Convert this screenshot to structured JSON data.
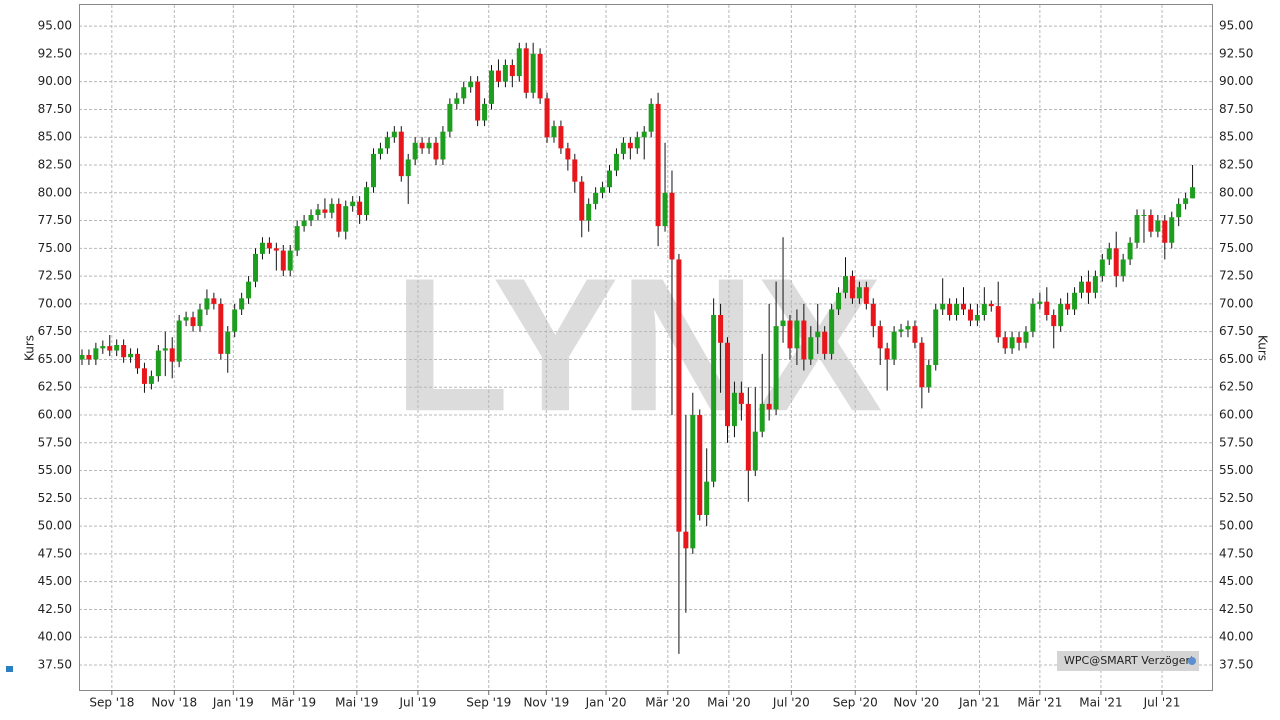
{
  "chart_data": {
    "type": "candlestick",
    "ylabel": "Kurs",
    "annotation": "WPC@SMART Verzögert",
    "watermark": "LYNX",
    "up_color": "#1e9e1e",
    "down_color": "#e8161b",
    "grid": true,
    "xlim": [
      -0.43,
      162.8
    ],
    "ylim": [
      35.25,
      96.9
    ],
    "xticks": [
      {
        "value": 4.3,
        "label": "Sep '18"
      },
      {
        "value": 13.3,
        "label": "Nov '18"
      },
      {
        "value": 21.8,
        "label": "Jan '19"
      },
      {
        "value": 30.5,
        "label": "Mär '19"
      },
      {
        "value": 39.6,
        "label": "Mai '19"
      },
      {
        "value": 48.4,
        "label": "Jul '19"
      },
      {
        "value": 58.6,
        "label": "Sep '19"
      },
      {
        "value": 66.9,
        "label": "Nov '19"
      },
      {
        "value": 75.5,
        "label": "Jan '20"
      },
      {
        "value": 84.4,
        "label": "Mär '20"
      },
      {
        "value": 93.2,
        "label": "Mai '20"
      },
      {
        "value": 102.2,
        "label": "Jul '20"
      },
      {
        "value": 111.4,
        "label": "Sep '20"
      },
      {
        "value": 120.2,
        "label": "Nov '20"
      },
      {
        "value": 129.3,
        "label": "Jan '21"
      },
      {
        "value": 138.0,
        "label": "Mär '21"
      },
      {
        "value": 146.8,
        "label": "Mai '21"
      },
      {
        "value": 155.6,
        "label": "Jul '21"
      }
    ],
    "yticks": [
      {
        "value": 37.5,
        "label": "37.50"
      },
      {
        "value": 40,
        "label": "40.00"
      },
      {
        "value": 42.5,
        "label": "42.50"
      },
      {
        "value": 45,
        "label": "45.00"
      },
      {
        "value": 47.5,
        "label": "47.50"
      },
      {
        "value": 50,
        "label": "50.00"
      },
      {
        "value": 52.5,
        "label": "52.50"
      },
      {
        "value": 55,
        "label": "55.00"
      },
      {
        "value": 57.5,
        "label": "57.50"
      },
      {
        "value": 60,
        "label": "60.00"
      },
      {
        "value": 62.5,
        "label": "62.50"
      },
      {
        "value": 65,
        "label": "65.00"
      },
      {
        "value": 67.5,
        "label": "67.50"
      },
      {
        "value": 70,
        "label": "70.00"
      },
      {
        "value": 72.5,
        "label": "72.50"
      },
      {
        "value": 75,
        "label": "75.00"
      },
      {
        "value": 77.5,
        "label": "77.50"
      },
      {
        "value": 80,
        "label": "80.00"
      },
      {
        "value": 82.5,
        "label": "82.50"
      },
      {
        "value": 85,
        "label": "85.00"
      },
      {
        "value": 87.5,
        "label": "87.50"
      },
      {
        "value": 90,
        "label": "90.00"
      },
      {
        "value": 92.5,
        "label": "92.50"
      },
      {
        "value": 95,
        "label": "95.00"
      }
    ],
    "x": [
      0,
      1,
      2,
      3,
      4,
      5,
      6,
      7,
      8,
      9,
      10,
      11,
      12,
      13,
      14,
      15,
      16,
      17,
      18,
      19,
      20,
      21,
      22,
      23,
      24,
      25,
      26,
      27,
      28,
      29,
      30,
      31,
      32,
      33,
      34,
      35,
      36,
      37,
      38,
      39,
      40,
      41,
      42,
      43,
      44,
      45,
      46,
      47,
      48,
      49,
      50,
      51,
      52,
      53,
      54,
      55,
      56,
      57,
      58,
      59,
      60,
      61,
      62,
      63,
      64,
      65,
      66,
      67,
      68,
      69,
      70,
      71,
      72,
      73,
      74,
      75,
      76,
      77,
      78,
      79,
      80,
      81,
      82,
      83,
      84,
      85,
      86,
      87,
      88,
      89,
      90,
      91,
      92,
      93,
      94,
      95,
      96,
      97,
      98,
      99,
      100,
      101,
      102,
      103,
      104,
      105,
      106,
      107,
      108,
      109,
      110,
      111,
      112,
      113,
      114,
      115,
      116,
      117,
      118,
      119,
      120,
      121,
      122,
      123,
      124,
      125,
      126,
      127,
      128,
      129,
      130,
      131,
      132,
      133,
      134,
      135,
      136,
      137,
      138,
      139,
      140,
      141,
      142,
      143,
      144,
      145,
      146,
      147,
      148,
      149,
      150,
      151,
      152,
      153,
      154,
      155,
      156,
      157,
      158,
      159,
      160
    ],
    "open": [
      65.0,
      65.4,
      65.0,
      66.0,
      66.2,
      65.8,
      66.3,
      65.2,
      65.5,
      64.2,
      62.8,
      63.5,
      65.8,
      66.0,
      64.8,
      68.5,
      68.8,
      68.0,
      69.5,
      70.5,
      70.0,
      65.5,
      67.5,
      69.5,
      70.5,
      72.0,
      74.5,
      75.5,
      75.0,
      74.8,
      73.0,
      74.8,
      77.0,
      77.5,
      78.0,
      78.5,
      78.2,
      79.0,
      76.5,
      78.8,
      79.2,
      78.0,
      80.5,
      83.5,
      84.0,
      85.0,
      85.5,
      81.5,
      83.0,
      84.5,
      84.0,
      84.5,
      83.0,
      85.5,
      88.0,
      88.5,
      89.5,
      90.0,
      86.5,
      88.0,
      91.0,
      90.0,
      91.5,
      90.5,
      93.0,
      89.0,
      92.5,
      88.5,
      85.0,
      86.0,
      84.0,
      83.0,
      81.0,
      77.5,
      79.0,
      80.0,
      80.5,
      82.0,
      83.5,
      84.5,
      84.0,
      85.0,
      85.5,
      88.0,
      77.0,
      80.0,
      74.0,
      49.5,
      48.0,
      60.0,
      51.0,
      54.0,
      69.0,
      66.5,
      59.0,
      62.0,
      61.0,
      55.0,
      58.5,
      61.0,
      60.5,
      68.0,
      68.5,
      66.0,
      68.5,
      65.0,
      67.0,
      67.5,
      65.5,
      69.5,
      71.0,
      72.5,
      70.5,
      71.5,
      70.0,
      68.0,
      66.0,
      65.0,
      67.5,
      67.7,
      68.0,
      66.5,
      62.5,
      64.5,
      69.5,
      70.0,
      69.0,
      70.0,
      69.5,
      68.5,
      69.0,
      70.0,
      69.8,
      67.0,
      66.0,
      67.0,
      66.5,
      67.5,
      70.0,
      70.2,
      69.0,
      68.0,
      70.0,
      69.5,
      71.0,
      72.0,
      71.0,
      72.5,
      74.0,
      75.0,
      72.5,
      74.0,
      75.5,
      78.0,
      78.0,
      76.5,
      77.5,
      75.5,
      77.8,
      79.0,
      79.5
    ],
    "close": [
      65.4,
      65.0,
      66.0,
      66.2,
      65.8,
      66.3,
      65.2,
      65.5,
      64.2,
      62.8,
      63.5,
      65.8,
      66.0,
      64.8,
      68.5,
      68.8,
      68.0,
      69.5,
      70.5,
      70.0,
      65.5,
      67.5,
      69.5,
      70.5,
      72.0,
      74.5,
      75.5,
      75.0,
      74.8,
      73.0,
      74.8,
      77.0,
      77.5,
      78.0,
      78.5,
      78.2,
      79.0,
      76.5,
      78.8,
      79.2,
      78.0,
      80.5,
      83.5,
      84.0,
      85.0,
      85.5,
      81.5,
      83.0,
      84.5,
      84.0,
      84.5,
      83.0,
      85.5,
      88.0,
      88.5,
      89.5,
      90.0,
      86.5,
      88.0,
      91.0,
      90.0,
      91.5,
      90.5,
      93.0,
      89.0,
      92.5,
      88.5,
      85.0,
      86.0,
      84.0,
      83.0,
      81.0,
      77.5,
      79.0,
      80.0,
      80.5,
      82.0,
      83.5,
      84.5,
      84.0,
      85.0,
      85.5,
      88.0,
      77.0,
      80.0,
      74.0,
      49.5,
      48.0,
      60.0,
      51.0,
      54.0,
      69.0,
      66.5,
      59.0,
      62.0,
      61.0,
      55.0,
      58.5,
      61.0,
      60.5,
      68.0,
      68.5,
      66.0,
      68.5,
      65.0,
      67.0,
      67.5,
      65.5,
      69.5,
      71.0,
      72.5,
      70.5,
      71.5,
      70.0,
      68.0,
      66.0,
      65.0,
      67.5,
      67.7,
      68.0,
      66.5,
      62.5,
      64.5,
      69.5,
      70.0,
      69.0,
      70.0,
      69.5,
      68.5,
      69.0,
      70.0,
      69.8,
      67.0,
      66.0,
      67.0,
      66.5,
      67.5,
      70.0,
      70.2,
      69.0,
      68.0,
      70.0,
      69.5,
      71.0,
      72.0,
      71.0,
      72.5,
      74.0,
      75.0,
      72.5,
      74.0,
      75.5,
      78.0,
      78.0,
      76.5,
      77.5,
      75.5,
      77.8,
      79.0,
      79.5,
      80.5
    ],
    "high": [
      65.9,
      65.9,
      66.5,
      66.7,
      67.2,
      66.8,
      66.8,
      66.0,
      66.0,
      64.7,
      64.0,
      66.3,
      67.5,
      67.0,
      69.0,
      69.3,
      69.3,
      70.0,
      71.3,
      71.0,
      70.5,
      68.0,
      70.0,
      71.0,
      72.5,
      75.0,
      76.0,
      76.0,
      75.5,
      75.3,
      75.3,
      77.5,
      78.0,
      78.5,
      79.0,
      79.5,
      79.5,
      79.5,
      79.3,
      79.7,
      79.7,
      81.0,
      84.0,
      84.5,
      85.5,
      86.0,
      86.0,
      83.5,
      85.0,
      85.0,
      85.0,
      85.0,
      86.0,
      88.5,
      89.0,
      90.0,
      90.5,
      90.5,
      88.5,
      91.5,
      92.0,
      92.0,
      92.0,
      93.5,
      93.5,
      93.5,
      93.0,
      89.0,
      86.5,
      86.5,
      84.5,
      83.5,
      81.5,
      79.5,
      80.5,
      81.0,
      82.5,
      84.0,
      85.0,
      85.0,
      85.5,
      86.0,
      88.5,
      89.0,
      84.5,
      82.0,
      74.5,
      60.0,
      62.0,
      60.5,
      57.0,
      70.5,
      70.0,
      67.0,
      63.0,
      63.0,
      62.5,
      62.5,
      65.5,
      70.0,
      72.0,
      76.0,
      69.0,
      69.5,
      70.0,
      68.0,
      70.0,
      68.0,
      70.0,
      71.5,
      74.2,
      73.0,
      72.0,
      72.0,
      70.5,
      68.5,
      66.5,
      68.0,
      68.2,
      68.5,
      68.5,
      67.0,
      65.0,
      70.0,
      72.3,
      70.5,
      70.5,
      71.5,
      70.0,
      70.0,
      71.5,
      70.3,
      72.0,
      67.5,
      67.5,
      67.5,
      68.0,
      70.5,
      71.0,
      71.5,
      69.5,
      70.5,
      71.0,
      71.5,
      72.5,
      73.0,
      73.0,
      74.5,
      75.5,
      76.5,
      74.5,
      76.0,
      78.5,
      78.5,
      78.5,
      78.0,
      78.0,
      78.3,
      79.5,
      80.0,
      82.5
    ],
    "low": [
      64.5,
      64.5,
      64.5,
      65.5,
      65.3,
      65.3,
      64.7,
      64.7,
      63.7,
      62.0,
      62.3,
      63.0,
      63.5,
      63.3,
      64.3,
      68.0,
      67.5,
      67.5,
      69.0,
      69.5,
      65.0,
      63.8,
      67.0,
      69.0,
      70.0,
      71.5,
      74.0,
      74.5,
      73.0,
      72.5,
      72.5,
      74.3,
      76.5,
      77.0,
      77.5,
      77.7,
      77.7,
      76.0,
      75.8,
      78.3,
      77.2,
      77.5,
      80.0,
      83.0,
      83.5,
      84.5,
      81.0,
      79.0,
      82.5,
      83.5,
      83.5,
      82.5,
      82.5,
      85.0,
      87.5,
      88.0,
      89.0,
      86.0,
      86.0,
      87.5,
      89.5,
      89.5,
      89.5,
      90.0,
      88.5,
      88.5,
      88.0,
      84.5,
      84.5,
      83.5,
      82.0,
      80.0,
      76.0,
      76.5,
      78.5,
      79.5,
      80.0,
      81.5,
      83.0,
      83.0,
      83.5,
      83.0,
      85.0,
      75.2,
      76.5,
      60.0,
      38.5,
      42.2,
      47.5,
      50.5,
      50.0,
      53.5,
      62.0,
      57.5,
      58.0,
      59.5,
      52.2,
      54.5,
      58.0,
      59.5,
      60.0,
      66.5,
      65.0,
      64.5,
      64.0,
      64.5,
      65.5,
      65.0,
      65.0,
      69.0,
      70.5,
      70.0,
      70.0,
      69.5,
      67.0,
      64.5,
      62.2,
      64.5,
      67.0,
      67.0,
      66.0,
      60.6,
      62.0,
      64.0,
      69.0,
      68.5,
      68.5,
      69.0,
      68.0,
      68.0,
      68.5,
      69.3,
      66.5,
      65.5,
      65.5,
      65.8,
      66.0,
      67.0,
      69.5,
      68.5,
      66.0,
      67.5,
      69.0,
      69.0,
      70.5,
      70.0,
      70.5,
      72.0,
      73.5,
      71.5,
      72.0,
      73.5,
      75.0,
      75.5,
      76.0,
      76.0,
      74.0,
      75.0,
      77.0,
      78.5,
      79.5
    ]
  }
}
